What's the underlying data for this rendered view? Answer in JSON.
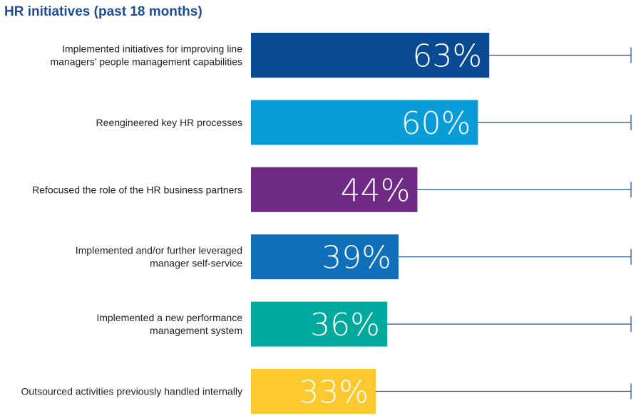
{
  "chart_data": {
    "type": "bar",
    "orientation": "horizontal",
    "title": "HR initiatives (past 18 months)",
    "xlim": [
      0,
      100
    ],
    "grid": false,
    "legend": "none",
    "categories": [
      [
        "Implemented initiatives for improving line",
        "managers’ people management capabilities"
      ],
      [
        "Reengineered key HR processes"
      ],
      [
        "Refocused the role of the HR business partners"
      ],
      [
        "Implemented and/or further leveraged",
        "manager self-service"
      ],
      [
        "Implemented a new performance",
        "management system"
      ],
      [
        "Outsourced activities previously handled internally"
      ]
    ],
    "values": [
      63,
      60,
      44,
      39,
      36,
      33
    ],
    "value_labels": [
      "63%",
      "60%",
      "44%",
      "39%",
      "36%",
      "33%"
    ],
    "colors": [
      "#0a4a92",
      "#0a9bd9",
      "#6e2a84",
      "#0f6fb8",
      "#00a99d",
      "#fcc92f"
    ],
    "track_color": "#1b4f8f"
  }
}
